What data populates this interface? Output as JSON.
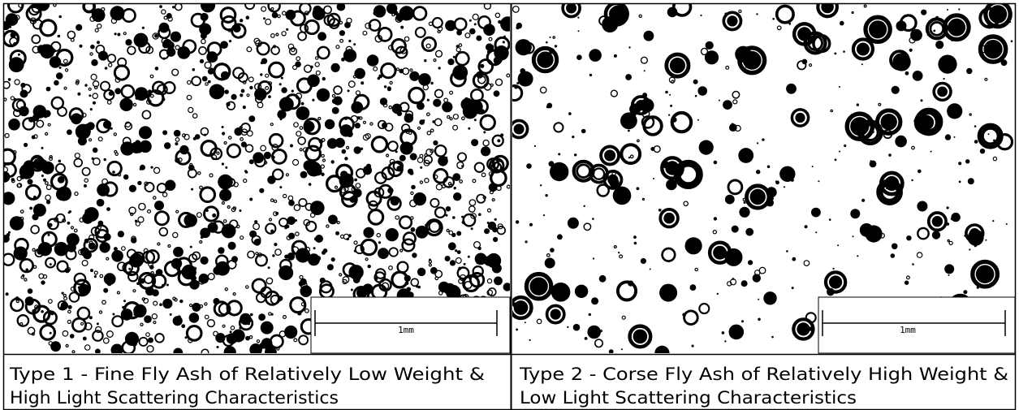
{
  "panels": [
    {
      "scale_label": "1mm",
      "caption_lines": [
        "Type 1 - Fine Fly Ash of Relatively Low Weight &",
        "High Light Scattering Characteristics"
      ]
    },
    {
      "scale_label": "1mm",
      "caption_lines": [
        "Type 2 - Corse Fly Ash of Relatively High Weight &",
        "Low Light Scattering Characteristics"
      ]
    }
  ]
}
